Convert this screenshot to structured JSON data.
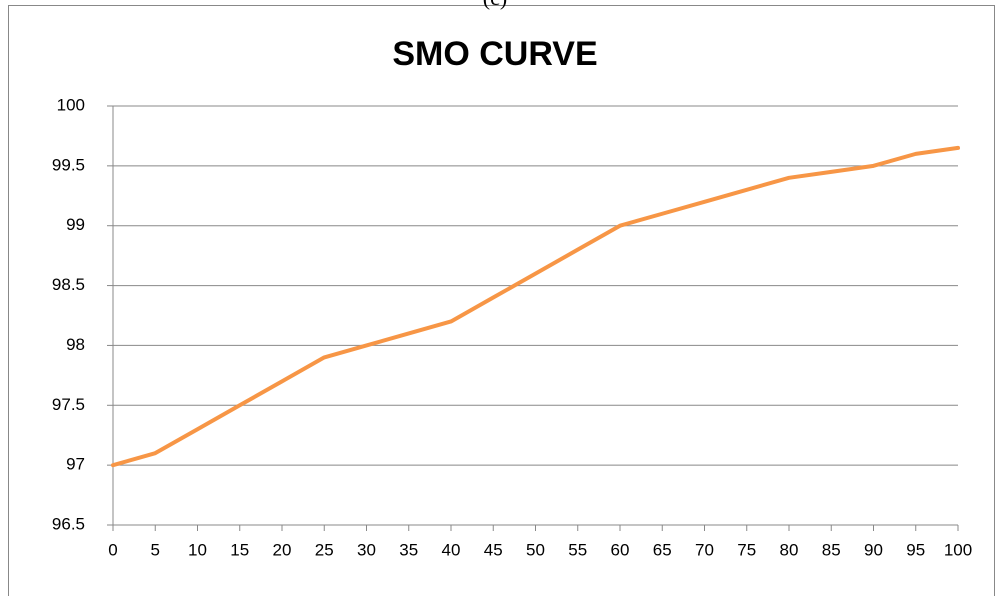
{
  "caption": "(c)",
  "chart_data": {
    "type": "line",
    "title": "SMO CURVE",
    "x": [
      0,
      5,
      10,
      15,
      20,
      25,
      30,
      35,
      40,
      45,
      50,
      55,
      60,
      65,
      70,
      75,
      80,
      85,
      90,
      95,
      100
    ],
    "values": [
      97,
      97.1,
      97.3,
      97.5,
      97.7,
      97.9,
      98,
      98.1,
      98.2,
      98.4,
      98.6,
      98.8,
      99,
      99.1,
      99.2,
      99.3,
      99.4,
      99.45,
      99.5,
      99.6,
      99.65
    ],
    "color": "#f79646",
    "xlim": [
      0,
      100
    ],
    "xticks": [
      0,
      5,
      10,
      15,
      20,
      25,
      30,
      35,
      40,
      45,
      50,
      55,
      60,
      65,
      70,
      75,
      80,
      85,
      90,
      95,
      100
    ],
    "ylim": [
      96.5,
      100
    ],
    "yticks": [
      96.5,
      97,
      97.5,
      98,
      98.5,
      99,
      99.5,
      100
    ],
    "grid": true
  }
}
